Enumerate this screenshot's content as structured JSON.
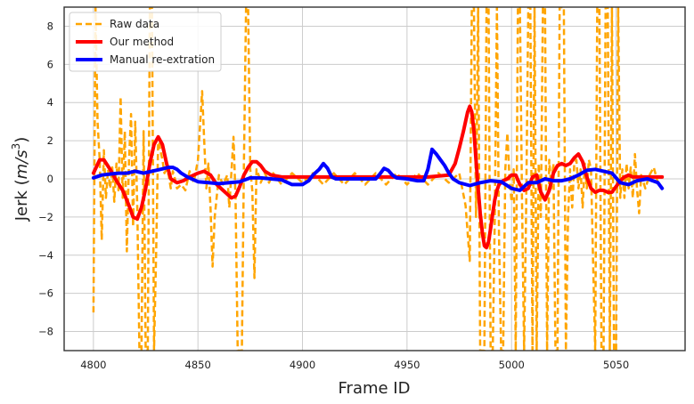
{
  "chart_data": {
    "type": "line",
    "xlabel": "Frame ID",
    "ylabel_prefix": "Jerk (",
    "ylabel_math": "m/s",
    "ylabel_sup": "3",
    "ylabel_suffix": ")",
    "xlim": [
      4786,
      5083
    ],
    "ylim": [
      -9,
      9
    ],
    "xticks": [
      4800,
      4850,
      4900,
      4950,
      5000,
      5050
    ],
    "yticks": [
      -8,
      -6,
      -4,
      -2,
      0,
      2,
      4,
      6,
      8
    ],
    "grid": true,
    "legend_position": "upper-left",
    "series": [
      {
        "name": "Raw data",
        "color": "#FFA500",
        "style": "dashed",
        "x": [
          4800,
          4801,
          4802,
          4803,
          4804,
          4805,
          4806,
          4807,
          4808,
          4809,
          4810,
          4811,
          4812,
          4813,
          4814,
          4815,
          4816,
          4817,
          4818,
          4819,
          4820,
          4821,
          4822,
          4823,
          4824,
          4825,
          4826,
          4827,
          4828,
          4829,
          4830,
          4831,
          4832,
          4833,
          4834,
          4835,
          4836,
          4837,
          4838,
          4839,
          4840,
          4842,
          4844,
          4846,
          4848,
          4850,
          4852,
          4853,
          4854,
          4855,
          4856,
          4857,
          4858,
          4860,
          4862,
          4864,
          4865,
          4866,
          4867,
          4868,
          4869,
          4870,
          4871,
          4872,
          4873,
          4874,
          4875,
          4876,
          4877,
          4878,
          4879,
          4880,
          4882,
          4884,
          4886,
          4890,
          4895,
          4900,
          4905,
          4910,
          4915,
          4920,
          4925,
          4930,
          4935,
          4940,
          4945,
          4950,
          4955,
          4960,
          4965,
          4970,
          4975,
          4978,
          4980,
          4981,
          4982,
          4983,
          4984,
          4985,
          4986,
          4987,
          4988,
          4989,
          4990,
          4991,
          4992,
          4993,
          4994,
          4995,
          4996,
          4997,
          4998,
          4999,
          5000,
          5001,
          5002,
          5003,
          5004,
          5005,
          5006,
          5007,
          5008,
          5009,
          5010,
          5011,
          5012,
          5013,
          5014,
          5015,
          5016,
          5017,
          5018,
          5019,
          5020,
          5021,
          5022,
          5023,
          5024,
          5025,
          5026,
          5027,
          5028,
          5029,
          5030,
          5031,
          5032,
          5033,
          5034,
          5035,
          5036,
          5037,
          5038,
          5039,
          5040,
          5041,
          5042,
          5043,
          5044,
          5045,
          5046,
          5047,
          5048,
          5049,
          5050,
          5051,
          5052,
          5053,
          5054,
          5055,
          5056,
          5057,
          5058,
          5059,
          5060,
          5061,
          5062,
          5064,
          5066,
          5068,
          5070,
          5072
        ],
        "values": [
          -7,
          9,
          3,
          1,
          -3.2,
          1.5,
          -1,
          0.5,
          -0.5,
          0.6,
          -1.2,
          0.8,
          -0.6,
          4.3,
          -1,
          2.5,
          -3.8,
          1,
          3.4,
          -2.5,
          3,
          -1.5,
          -9,
          -9,
          2.5,
          -9,
          -9,
          9,
          9,
          -9,
          -3.8,
          2.2,
          1.5,
          1,
          0.3,
          0.5,
          0.2,
          -0.5,
          0.4,
          0,
          -0.5,
          -0.3,
          -0.6,
          0.4,
          -0.2,
          1,
          4.6,
          2,
          -0.5,
          0.8,
          -1.5,
          -4.6,
          -2,
          0.2,
          -0.3,
          0.2,
          -1.5,
          0.3,
          2.2,
          -1,
          -9,
          -9,
          -9,
          0.8,
          9,
          9,
          0.5,
          -0.6,
          -5.2,
          0.5,
          0.2,
          -0.2,
          0.3,
          -0.2,
          0.3,
          -0.3,
          0.3,
          -0.2,
          0.3,
          -0.3,
          0.3,
          -0.3,
          0.3,
          -0.3,
          0.3,
          -0.3,
          0.3,
          -0.3,
          0.3,
          -0.3,
          0.3,
          -0.2,
          0.3,
          -1.4,
          -4.3,
          9,
          9,
          -2,
          9,
          -9,
          -9,
          -9,
          9,
          9,
          -9,
          -9,
          -2,
          9,
          -3,
          -9,
          -9,
          0.5,
          2.4,
          0,
          -1.2,
          0.5,
          -9,
          9,
          9,
          -1,
          -9,
          -1.5,
          9,
          9,
          -9,
          9,
          -9,
          0.8,
          -2,
          9,
          9,
          -9,
          1,
          -0.5,
          0.8,
          -9,
          -9,
          9,
          9,
          9,
          -9,
          -2,
          0.5,
          -1.5,
          0.8,
          1,
          -0.5,
          0.5,
          -1.5,
          0.8,
          -0.5,
          1,
          0.5,
          -4.3,
          -9,
          9,
          9,
          -9,
          -9,
          9,
          9,
          -9,
          9,
          -9,
          -9,
          9,
          -1,
          0.5,
          -1,
          0.8,
          -0.5,
          0.6,
          -1,
          1.3,
          -0.5,
          -1.8,
          0.2,
          -0.5,
          0.2,
          0.6,
          -0.2,
          -0.1
        ]
      },
      {
        "name": "Our method",
        "color": "#FF0000",
        "style": "solid",
        "x": [
          4800,
          4803,
          4805,
          4808,
          4811,
          4814,
          4817,
          4819,
          4821,
          4823,
          4825,
          4827,
          4829,
          4831,
          4833,
          4835,
          4837,
          4840,
          4843,
          4846,
          4850,
          4853,
          4856,
          4859,
          4862,
          4864,
          4866,
          4868,
          4870,
          4872,
          4874,
          4876,
          4878,
          4880,
          4882,
          4885,
          4890,
          4900,
          4920,
          4940,
          4960,
          4970,
          4973,
          4975,
          4977,
          4979,
          4980,
          4981,
          4982,
          4983,
          4984,
          4985,
          4986,
          4987,
          4988,
          4989,
          4990,
          4991,
          4992,
          4993,
          4994,
          4996,
          4998,
          5000,
          5002,
          5004,
          5006,
          5008,
          5010,
          5012,
          5014,
          5016,
          5018,
          5020,
          5022,
          5024,
          5026,
          5028,
          5030,
          5032,
          5034,
          5036,
          5038,
          5040,
          5042,
          5044,
          5046,
          5048,
          5050,
          5052,
          5054,
          5056,
          5058,
          5060,
          5065,
          5070,
          5072
        ],
        "values": [
          0.3,
          1,
          1,
          0.5,
          -0.1,
          -0.6,
          -1.4,
          -2,
          -2.1,
          -1.5,
          -0.5,
          0.8,
          1.8,
          2.2,
          1.8,
          0.8,
          0,
          -0.2,
          -0.1,
          0.1,
          0.3,
          0.4,
          0.2,
          -0.3,
          -0.6,
          -0.8,
          -1,
          -0.9,
          -0.4,
          0.2,
          0.6,
          0.9,
          0.9,
          0.7,
          0.4,
          0.2,
          0.1,
          0.1,
          0.1,
          0.1,
          0.1,
          0.2,
          0.8,
          1.6,
          2.5,
          3.5,
          3.8,
          3.5,
          2.5,
          1,
          -0.5,
          -1.8,
          -2.8,
          -3.5,
          -3.6,
          -3.3,
          -2.6,
          -1.8,
          -1.1,
          -0.6,
          -0.3,
          -0.1,
          0,
          0.2,
          0.2,
          -0.3,
          -0.6,
          -0.5,
          0.1,
          0.2,
          -0.7,
          -1.1,
          -0.6,
          0.3,
          0.7,
          0.8,
          0.7,
          0.8,
          1.1,
          1.3,
          0.9,
          0.1,
          -0.5,
          -0.7,
          -0.6,
          -0.6,
          -0.7,
          -0.7,
          -0.4,
          -0.1,
          0.1,
          0.2,
          0.1,
          0.1,
          0.1,
          0.1,
          0.1
        ]
      },
      {
        "name": "Manual re-extration",
        "color": "#0000FF",
        "style": "solid",
        "x": [
          4800,
          4804,
          4808,
          4812,
          4816,
          4820,
          4822,
          4824,
          4826,
          4828,
          4832,
          4836,
          4838,
          4840,
          4842,
          4845,
          4850,
          4855,
          4860,
          4865,
          4870,
          4875,
          4880,
          4885,
          4890,
          4895,
          4900,
          4903,
          4905,
          4908,
          4910,
          4912,
          4914,
          4916,
          4920,
          4930,
          4935,
          4937,
          4939,
          4941,
          4943,
          4945,
          4950,
          4955,
          4958,
          4960,
          4962,
          4964,
          4966,
          4968,
          4970,
          4972,
          4975,
          4980,
          4985,
          4990,
          4995,
          5000,
          5004,
          5008,
          5012,
          5016,
          5020,
          5024,
          5028,
          5032,
          5036,
          5040,
          5044,
          5048,
          5052,
          5056,
          5060,
          5065,
          5070,
          5072
        ],
        "values": [
          0.05,
          0.2,
          0.25,
          0.3,
          0.3,
          0.4,
          0.35,
          0.3,
          0.35,
          0.4,
          0.5,
          0.6,
          0.6,
          0.5,
          0.3,
          0.1,
          -0.15,
          -0.2,
          -0.25,
          -0.2,
          -0.15,
          0.05,
          0.05,
          0,
          -0.05,
          -0.3,
          -0.3,
          -0.1,
          0.2,
          0.5,
          0.8,
          0.55,
          0.1,
          0,
          0,
          0,
          0,
          0.25,
          0.55,
          0.45,
          0.2,
          0.05,
          0,
          -0.1,
          -0.1,
          0.5,
          1.55,
          1.3,
          1,
          0.7,
          0.3,
          0,
          -0.2,
          -0.35,
          -0.2,
          -0.1,
          -0.15,
          -0.5,
          -0.6,
          -0.2,
          -0.2,
          0,
          -0.1,
          -0.1,
          0,
          0.2,
          0.45,
          0.5,
          0.4,
          0.3,
          -0.2,
          -0.3,
          -0.1,
          0,
          -0.2,
          -0.5
        ]
      }
    ]
  }
}
